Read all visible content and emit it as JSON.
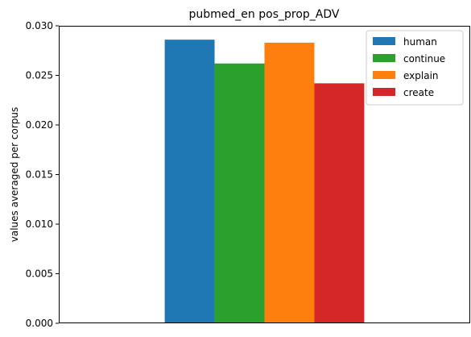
{
  "chart_data": {
    "type": "bar",
    "title": "pubmed_en pos_prop_ADV",
    "xlabel": "",
    "ylabel": "values averaged per corpus",
    "ylim": [
      0,
      0.03
    ],
    "yticks": [
      "0.000",
      "0.005",
      "0.010",
      "0.015",
      "0.020",
      "0.025",
      "0.030"
    ],
    "ytick_values": [
      0,
      0.005,
      0.01,
      0.015,
      0.02,
      0.025,
      0.03
    ],
    "grid": false,
    "legend_position": "top-right",
    "series": [
      {
        "name": "human",
        "value": 0.0286,
        "color": "#1f77b4"
      },
      {
        "name": "continue",
        "value": 0.0262,
        "color": "#2ca02c"
      },
      {
        "name": "explain",
        "value": 0.0283,
        "color": "#ff7f0e"
      },
      {
        "name": "create",
        "value": 0.0242,
        "color": "#d62728"
      }
    ]
  }
}
